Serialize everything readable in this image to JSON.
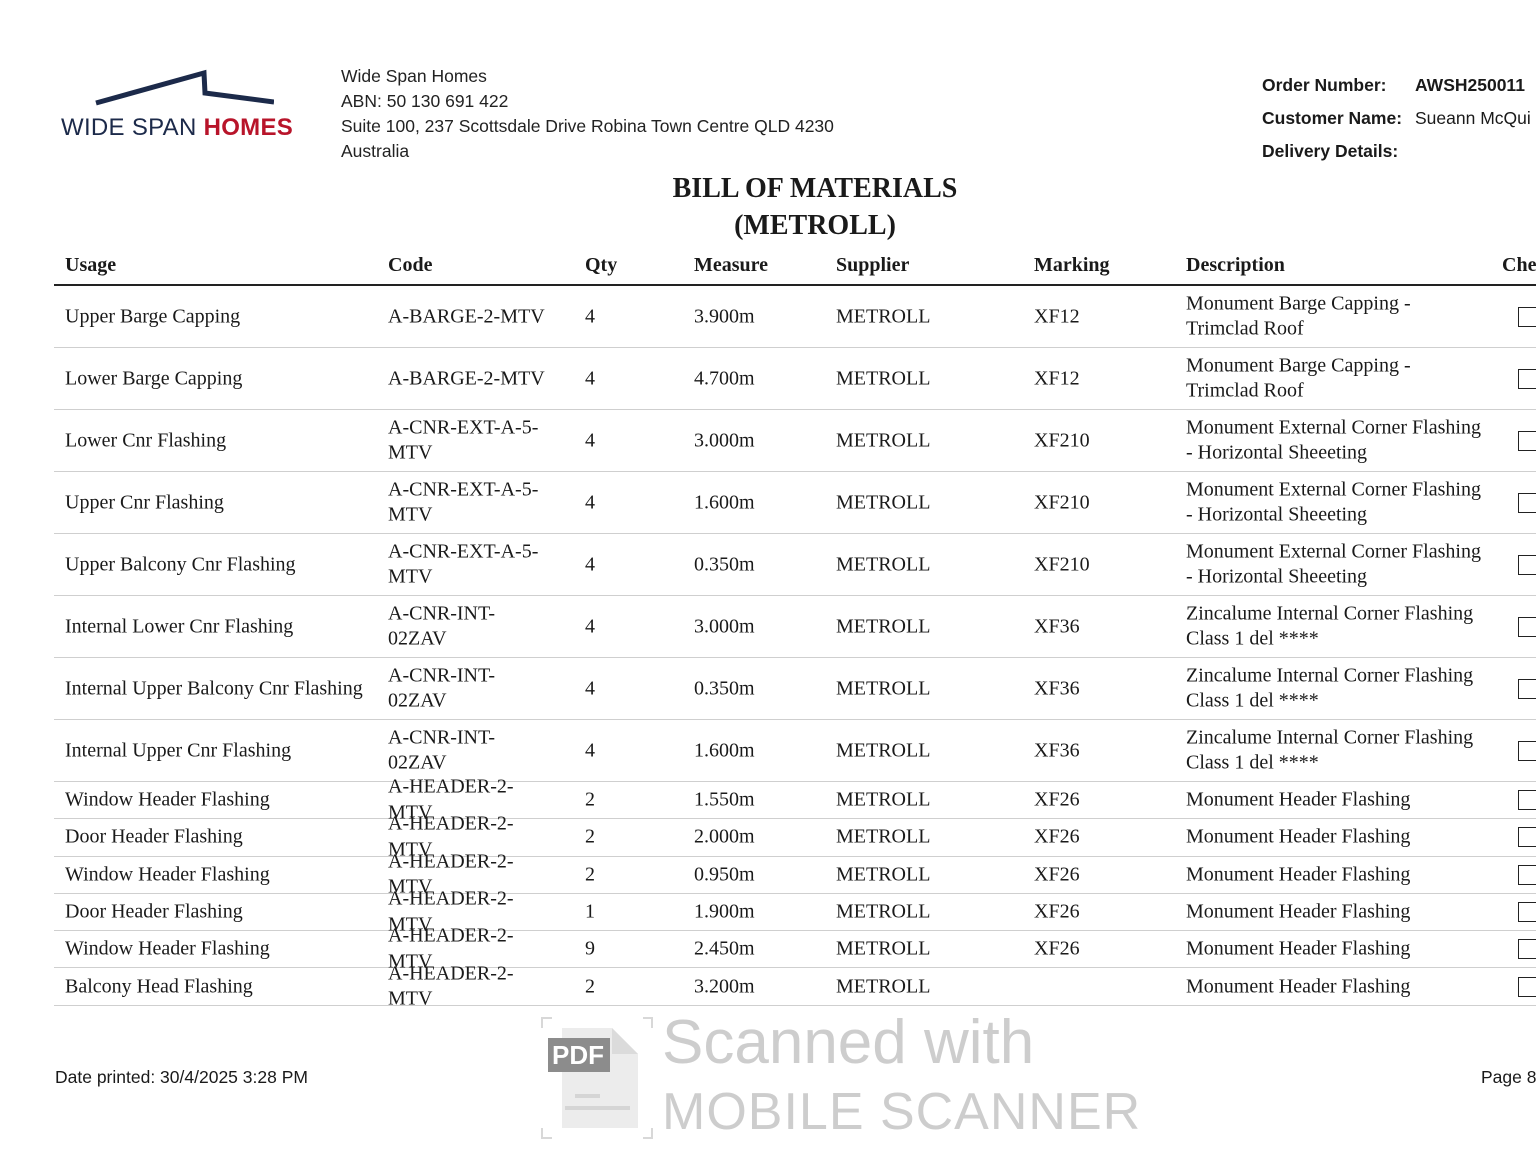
{
  "logo": {
    "text_light": "WIDE SPAN ",
    "text_bold": "HOMES",
    "navy": "#1c2a4a",
    "red": "#b8142a"
  },
  "company": {
    "name": "Wide Span Homes",
    "abn": "ABN: 50 130 691 422",
    "address": "Suite 100, 237 Scottsdale Drive Robina Town Centre QLD 4230",
    "country": "Australia"
  },
  "order": {
    "order_number_label": "Order Number:",
    "order_number": "AWSH250011",
    "customer_label": "Customer Name:",
    "customer": "Sueann McQui",
    "delivery_label": "Delivery Details:"
  },
  "title": {
    "line1": "BILL OF MATERIALS",
    "line2": "(METROLL)"
  },
  "table": {
    "headers": [
      "Usage",
      "Code",
      "Qty",
      "Measure",
      "Supplier",
      "Marking",
      "Description",
      "Che"
    ],
    "rows": [
      {
        "usage": "Upper Barge Capping",
        "code": "A-BARGE-2-MTV",
        "qty": "4",
        "measure": "3.900m",
        "supplier": "METROLL",
        "marking": "XF12",
        "description": "Monument Barge Capping - Trimclad Roof",
        "checked": false
      },
      {
        "usage": "Lower Barge Capping",
        "code": "A-BARGE-2-MTV",
        "qty": "4",
        "measure": "4.700m",
        "supplier": "METROLL",
        "marking": "XF12",
        "description": "Monument Barge Capping - Trimclad Roof",
        "checked": false
      },
      {
        "usage": "Lower Cnr Flashing",
        "code": "A-CNR-EXT-A-5-MTV",
        "qty": "4",
        "measure": "3.000m",
        "supplier": "METROLL",
        "marking": "XF210",
        "description": "Monument External Corner Flashing - Horizontal Sheeeting",
        "checked": false
      },
      {
        "usage": "Upper Cnr Flashing",
        "code": "A-CNR-EXT-A-5-MTV",
        "qty": "4",
        "measure": "1.600m",
        "supplier": "METROLL",
        "marking": "XF210",
        "description": "Monument External Corner Flashing - Horizontal Sheeeting",
        "checked": false
      },
      {
        "usage": "Upper Balcony Cnr Flashing",
        "code": "A-CNR-EXT-A-5-MTV",
        "qty": "4",
        "measure": "0.350m",
        "supplier": "METROLL",
        "marking": "XF210",
        "description": "Monument External Corner Flashing - Horizontal Sheeeting",
        "checked": false
      },
      {
        "usage": "Internal Lower Cnr Flashing",
        "code": "A-CNR-INT-02ZAV",
        "qty": "4",
        "measure": "3.000m",
        "supplier": "METROLL",
        "marking": "XF36",
        "description": "Zincalume Internal Corner Flashing Class 1 del ****",
        "checked": false
      },
      {
        "usage": "Internal Upper Balcony Cnr Flashing",
        "code": "A-CNR-INT-02ZAV",
        "qty": "4",
        "measure": "0.350m",
        "supplier": "METROLL",
        "marking": "XF36",
        "description": "Zincalume Internal Corner Flashing Class 1 del ****",
        "checked": false
      },
      {
        "usage": "Internal Upper Cnr Flashing",
        "code": "A-CNR-INT-02ZAV",
        "qty": "4",
        "measure": "1.600m",
        "supplier": "METROLL",
        "marking": "XF36",
        "description": "Zincalume Internal Corner Flashing Class 1 del ****",
        "checked": false
      },
      {
        "usage": "Window Header Flashing",
        "code": "A-HEADER-2-MTV",
        "qty": "2",
        "measure": "1.550m",
        "supplier": "METROLL",
        "marking": "XF26",
        "description": "Monument Header Flashing",
        "checked": false
      },
      {
        "usage": "Door Header Flashing",
        "code": "A-HEADER-2-MTV",
        "qty": "2",
        "measure": "2.000m",
        "supplier": "METROLL",
        "marking": "XF26",
        "description": "Monument Header Flashing",
        "checked": false
      },
      {
        "usage": "Window Header Flashing",
        "code": "A-HEADER-2-MTV",
        "qty": "2",
        "measure": "0.950m",
        "supplier": "METROLL",
        "marking": "XF26",
        "description": "Monument Header Flashing",
        "checked": false
      },
      {
        "usage": "Door Header Flashing",
        "code": "A-HEADER-2-MTV",
        "qty": "1",
        "measure": "1.900m",
        "supplier": "METROLL",
        "marking": "XF26",
        "description": "Monument Header Flashing",
        "checked": false
      },
      {
        "usage": "Window Header Flashing",
        "code": "A-HEADER-2-MTV",
        "qty": "9",
        "measure": "2.450m",
        "supplier": "METROLL",
        "marking": "XF26",
        "description": "Monument Header Flashing",
        "checked": false
      },
      {
        "usage": "Balcony Head Flashing",
        "code": "A-HEADER-2-MTV",
        "qty": "2",
        "measure": "3.200m",
        "supplier": "METROLL",
        "marking": "",
        "description": "Monument Header Flashing",
        "checked": false
      }
    ]
  },
  "footer": {
    "date_printed": "Date printed: 30/4/2025 3:28 PM",
    "page": "Page 8"
  },
  "watermark": {
    "badge": "PDF",
    "line1": "Scanned with",
    "line2": "MOBILE SCANNER",
    "icon": "pdf-file-icon"
  }
}
